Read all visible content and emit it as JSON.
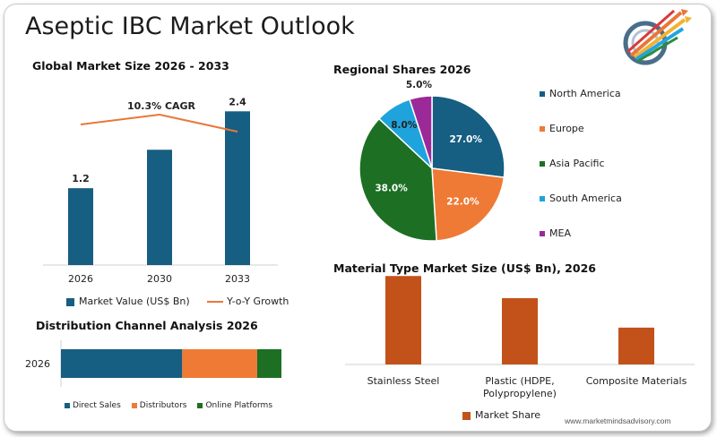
{
  "title": "Aseptic IBC Market Outlook",
  "footer": "www.marketmindsadvisory.com",
  "chart_data": [
    {
      "type": "bar",
      "title": "Global Market Size 2026 - 2033",
      "categories": [
        "2026",
        "2030",
        "2033"
      ],
      "series": [
        {
          "name": "Market Value (US$ Bn)",
          "values": [
            1.2,
            1.8,
            2.4
          ],
          "color": "#165e82"
        },
        {
          "name": "Y-o-Y Growth",
          "type": "line",
          "color": "#e8773a"
        }
      ],
      "data_labels": [
        "1.2",
        "",
        "2.4"
      ],
      "annotation": "10.3% CAGR",
      "ylim": [
        0,
        2.6
      ]
    },
    {
      "type": "pie",
      "title": "Regional Shares 2026",
      "labels": [
        "North America",
        "Europe",
        "Asia Pacific",
        "South America",
        "MEA"
      ],
      "values": [
        27.0,
        22.0,
        38.0,
        8.0,
        5.0
      ],
      "value_labels": [
        "27.0%",
        "22.0%",
        "38.0%",
        "8.0%",
        "5.0%"
      ],
      "colors": [
        "#165e82",
        "#ee7a35",
        "#1d6f24",
        "#1fa3dc",
        "#9b2a98"
      ],
      "legend": "right"
    },
    {
      "type": "bar",
      "title": "Distribution Channel Analysis 2026",
      "orientation": "horizontal-stacked",
      "categories": [
        "2026"
      ],
      "series": [
        {
          "name": "Direct Sales",
          "values": [
            55
          ],
          "color": "#165e82"
        },
        {
          "name": "Distributors",
          "values": [
            34
          ],
          "color": "#ee7a35"
        },
        {
          "name": "Online Platforms",
          "values": [
            11
          ],
          "color": "#1d6f24"
        }
      ]
    },
    {
      "type": "bar",
      "title": "Material Type Market Size (US$ Bn), 2026",
      "categories": [
        "Stainless Steel",
        "Plastic (HDPE, Polypropylene)",
        "Composite Materials"
      ],
      "category_lines": [
        [
          "Stainless Steel"
        ],
        [
          "Plastic (HDPE,",
          "Polypropylene)"
        ],
        [
          "Composite Materials"
        ]
      ],
      "series": [
        {
          "name": "Market Share",
          "values": [
            0.6,
            0.45,
            0.25
          ],
          "color": "#c2521a"
        }
      ],
      "ylim": [
        0,
        0.65
      ]
    }
  ]
}
